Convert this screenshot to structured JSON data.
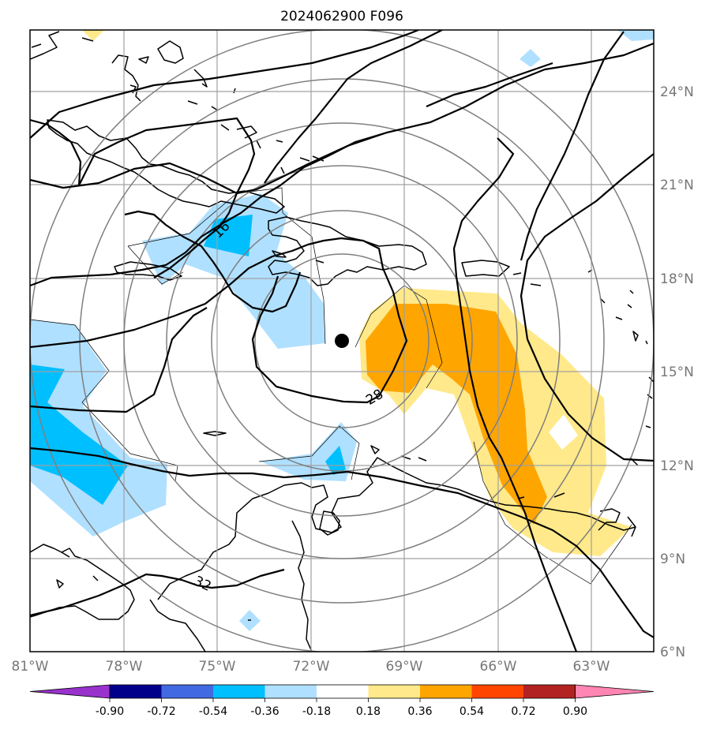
{
  "title": "2024062900 F096",
  "map": {
    "lon_range": [
      -81,
      -61
    ],
    "lat_range": [
      6,
      26
    ],
    "lon_ticks": [
      {
        "value": -81,
        "label": "81°W"
      },
      {
        "value": -78,
        "label": "78°W"
      },
      {
        "value": -75,
        "label": "75°W"
      },
      {
        "value": -72,
        "label": "72°W"
      },
      {
        "value": -69,
        "label": "69°W"
      },
      {
        "value": -66,
        "label": "66°W"
      },
      {
        "value": -63,
        "label": "63°W"
      }
    ],
    "lat_ticks": [
      {
        "value": 24,
        "label": "24°N"
      },
      {
        "value": 21,
        "label": "21°N"
      },
      {
        "value": 18,
        "label": "18°N"
      },
      {
        "value": 15,
        "label": "15°N"
      },
      {
        "value": 12,
        "label": "12°N"
      },
      {
        "value": 9,
        "label": "9°N"
      },
      {
        "value": 6,
        "label": "6°N"
      }
    ],
    "grid": true,
    "storm_center": {
      "lon": -71,
      "lat": 16
    },
    "range_ring_count": 6,
    "contour_labels": [
      "16",
      "28",
      "32"
    ]
  },
  "colorbar": {
    "ticks": [
      "-0.90",
      "-0.72",
      "-0.54",
      "-0.36",
      "-0.18",
      "0.18",
      "0.36",
      "0.54",
      "0.72",
      "0.90"
    ],
    "colors": [
      "#9932cc",
      "#00008b",
      "#4169e1",
      "#00bfff",
      "#b0e0ff",
      "#ffffff",
      "#ffe98a",
      "#ffa500",
      "#ff4500",
      "#b22222",
      "#ff85b3"
    ]
  }
}
